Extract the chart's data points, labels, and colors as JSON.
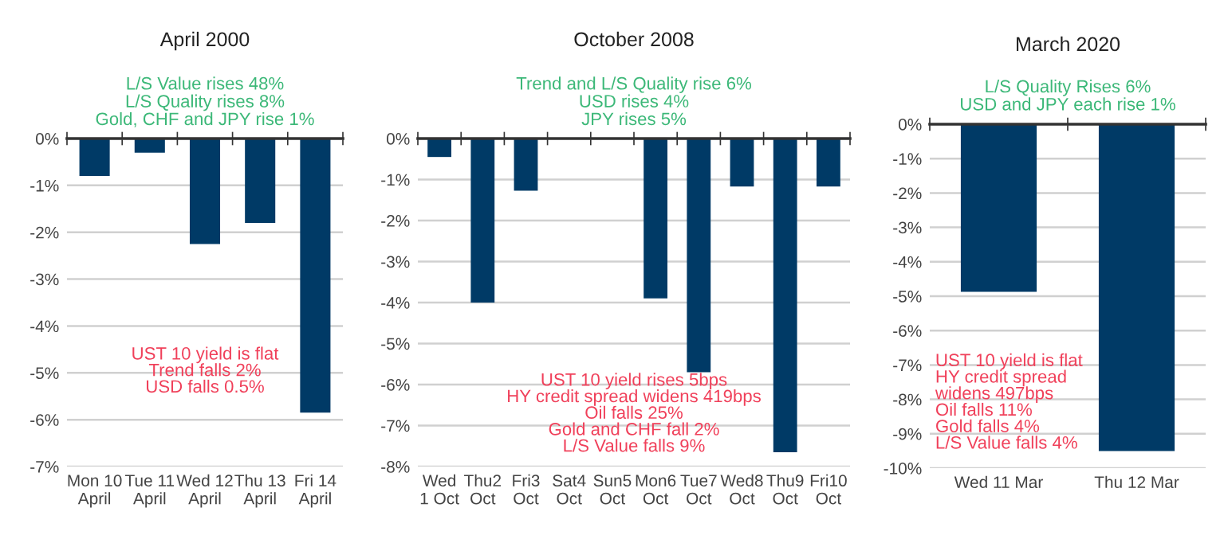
{
  "chart_data": [
    {
      "type": "bar",
      "title": "April 2000",
      "subtitle": "L/S Value rises 48%\nL/S Quality rises 8%\nGold, CHF and JPY rise 1%",
      "categories": [
        "Mon 10\nApril",
        "Tue 11\nApril",
        "Wed 12\nApril",
        "Thu 13\nApril",
        "Fri 14\nApril"
      ],
      "values": [
        -0.8,
        -0.3,
        -2.25,
        -1.8,
        -5.85
      ],
      "color": "#003a66",
      "ylim": [
        -7,
        0
      ],
      "yticks": [
        {
          "value": 0,
          "label": "0%"
        },
        {
          "value": -1,
          "label": "-1%"
        },
        {
          "value": -2,
          "label": "-2%"
        },
        {
          "value": -3,
          "label": "-3%"
        },
        {
          "value": -4,
          "label": "-4%"
        },
        {
          "value": -5,
          "label": "-5%"
        },
        {
          "value": -6,
          "label": "-6%"
        },
        {
          "value": -7,
          "label": "-7%"
        }
      ],
      "grid": "y",
      "annotations": [
        "UST 10 yield is flat\nTrend falls 2%\nUSD falls 0.5%"
      ]
    },
    {
      "type": "bar",
      "title": "October 2008",
      "subtitle": "Trend and L/S Quality rise 6%\nUSD rises 4%\nJPY rises 5%",
      "categories": [
        "Wed\n1 Oct",
        "Thu2\nOct",
        "Fri3\nOct",
        "Sat4\nOct",
        "Sun5\nOct",
        "Mon6\nOct",
        "Tue7\nOct",
        "Wed8\nOct",
        "Thu9\nOct",
        "Fri10\nOct"
      ],
      "values": [
        -0.45,
        -4.0,
        -1.27,
        null,
        null,
        -3.9,
        -5.7,
        -1.17,
        -7.65,
        -1.17
      ],
      "color": "#003a66",
      "ylim": [
        -8,
        0
      ],
      "yticks": [
        {
          "value": 0,
          "label": "0%"
        },
        {
          "value": -1,
          "label": "-1%"
        },
        {
          "value": -2,
          "label": "-2%"
        },
        {
          "value": -3,
          "label": "-3%"
        },
        {
          "value": -4,
          "label": "-4%"
        },
        {
          "value": -5,
          "label": "-5%"
        },
        {
          "value": -6,
          "label": "-6%"
        },
        {
          "value": -7,
          "label": "-7%"
        },
        {
          "value": -8,
          "label": "-8%"
        }
      ],
      "grid": "y",
      "annotations": [
        "UST 10 yield rises 5bps\nHY credit spread widens 419bps\nOil falls 25%\nGold and CHF fall 2%\nL/S Value falls 9%"
      ]
    },
    {
      "type": "bar",
      "title": "March 2020",
      "subtitle": "L/S Quality Rises 6%\nUSD and JPY each rise 1%",
      "categories": [
        "Wed 11 Mar",
        "Thu 12 Mar"
      ],
      "values": [
        -4.87,
        -9.5
      ],
      "color": "#003a66",
      "ylim": [
        -10,
        0
      ],
      "yticks": [
        {
          "value": 0,
          "label": "0%"
        },
        {
          "value": -1,
          "label": "-1%"
        },
        {
          "value": -2,
          "label": "-2%"
        },
        {
          "value": -3,
          "label": "-3%"
        },
        {
          "value": -4,
          "label": "-4%"
        },
        {
          "value": -5,
          "label": "-5%"
        },
        {
          "value": -6,
          "label": "-6%"
        },
        {
          "value": -7,
          "label": "-7%"
        },
        {
          "value": -8,
          "label": "-8%"
        },
        {
          "value": -9,
          "label": "-9%"
        },
        {
          "value": -10,
          "label": "-10%"
        }
      ],
      "grid": "y",
      "annotations": [
        "UST 10 yield is flat\nHY credit spread\nwidens 497bps\nOil falls 11%\nGold falls 4%\nL/S Value falls 4%"
      ]
    }
  ]
}
